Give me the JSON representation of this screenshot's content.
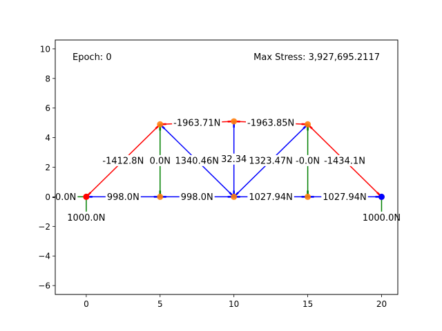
{
  "chart_data": {
    "type": "scatter",
    "title": "",
    "xlabel": "",
    "ylabel": "",
    "xlim": [
      -2.1,
      21.1
    ],
    "ylim": [
      -6.6,
      10.6
    ],
    "x_ticks": [
      0,
      5,
      10,
      15,
      20
    ],
    "y_ticks": [
      -6,
      -4,
      -2,
      0,
      2,
      4,
      6,
      8,
      10
    ],
    "grid": false,
    "annotations": {
      "epoch": "Epoch: 0",
      "max_stress": "Max Stress: 3,927,695.2117"
    },
    "colors": {
      "tension": "#ff0000",
      "compression": "#0000ff",
      "zero_force": "#008000",
      "node": "#ff7f0e",
      "pin_support": "#ff0000",
      "roller_support": "#0000ff"
    },
    "nodes": [
      {
        "id": "A",
        "x": 0,
        "y": 0
      },
      {
        "id": "B",
        "x": 5,
        "y": 0
      },
      {
        "id": "C",
        "x": 10,
        "y": 0
      },
      {
        "id": "D",
        "x": 15,
        "y": 0
      },
      {
        "id": "E",
        "x": 20,
        "y": 0
      },
      {
        "id": "F",
        "x": 5,
        "y": 4.9
      },
      {
        "id": "G",
        "x": 10,
        "y": 5.1
      },
      {
        "id": "H",
        "x": 15,
        "y": 4.9
      }
    ],
    "supports": [
      {
        "node": "A",
        "type": "pin"
      },
      {
        "node": "E",
        "type": "roller"
      }
    ],
    "members": [
      {
        "from": "A",
        "to": "B",
        "force": "998.0N",
        "kind": "compression",
        "lx": 2.5,
        "ly": 0
      },
      {
        "from": "B",
        "to": "C",
        "force": "998.0N",
        "kind": "compression",
        "lx": 7.5,
        "ly": 0
      },
      {
        "from": "C",
        "to": "D",
        "force": "1027.94N",
        "kind": "compression",
        "lx": 12.5,
        "ly": 0
      },
      {
        "from": "D",
        "to": "E",
        "force": "1027.94N",
        "kind": "compression",
        "lx": 17.5,
        "ly": 0
      },
      {
        "from": "A",
        "to": "F",
        "force": "-1412.8N",
        "kind": "tension",
        "lx": 2.5,
        "ly": 2.45
      },
      {
        "from": "F",
        "to": "G",
        "force": "-1963.71N",
        "kind": "tension",
        "lx": 7.5,
        "ly": 5.0
      },
      {
        "from": "G",
        "to": "H",
        "force": "-1963.85N",
        "kind": "tension",
        "lx": 12.5,
        "ly": 5.0
      },
      {
        "from": "H",
        "to": "E",
        "force": "-1434.1N",
        "kind": "tension",
        "lx": 17.5,
        "ly": 2.45
      },
      {
        "from": "F",
        "to": "B",
        "force": "0.0N",
        "kind": "zero",
        "lx": 5,
        "ly": 2.45
      },
      {
        "from": "F",
        "to": "C",
        "force": "1340.46N",
        "kind": "compression",
        "lx": 7.5,
        "ly": 2.45
      },
      {
        "from": "G",
        "to": "C",
        "force": "32.34",
        "kind": "compression",
        "lx": 10,
        "ly": 2.55
      },
      {
        "from": "H",
        "to": "C",
        "force": "1323.47N",
        "kind": "compression",
        "lx": 12.5,
        "ly": 2.45
      },
      {
        "from": "H",
        "to": "D",
        "force": "-0.0N",
        "kind": "zero",
        "lx": 15,
        "ly": 2.45
      }
    ],
    "external_loads": [
      {
        "node": "A",
        "direction": "horizontal",
        "label": "-0.0N",
        "x0": -2.1,
        "x1": 0,
        "lx": -1.5,
        "ly": 0
      },
      {
        "node": "A",
        "direction": "vertical",
        "label": "1000.0N",
        "y0": 0,
        "y1": -1.0,
        "lx": 0,
        "ly": -1.4
      },
      {
        "node": "E",
        "direction": "vertical",
        "label": "1000.0N",
        "y0": 0,
        "y1": -1.0,
        "lx": 20,
        "ly": -1.4
      }
    ]
  }
}
